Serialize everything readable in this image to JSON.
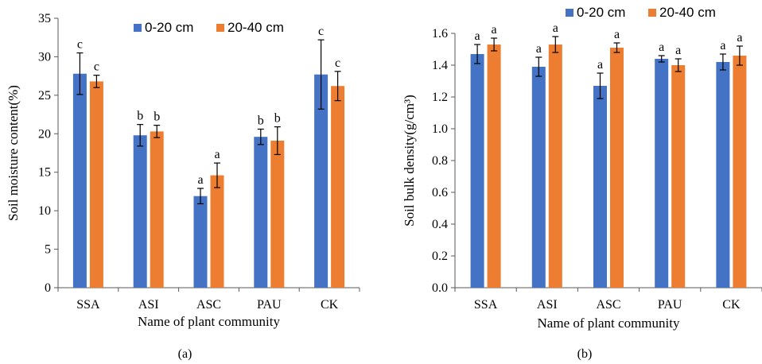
{
  "chart_data": [
    {
      "type": "bar",
      "panel_label": "(a)",
      "xlabel": "Name of plant community",
      "ylabel": "Soil moisture content(%)",
      "ylim": [
        0,
        35
      ],
      "yticks": [
        "0",
        "5",
        "10",
        "15",
        "20",
        "25",
        "30",
        "35"
      ],
      "categories": [
        "SSA",
        "ASI",
        "ASC",
        "PAU",
        "CK"
      ],
      "legend_position": "top-center",
      "series": [
        {
          "name": "0-20 cm",
          "color": "#4472C4",
          "values": [
            27.8,
            19.8,
            11.9,
            19.6,
            27.7
          ],
          "errors": [
            2.7,
            1.4,
            1.0,
            1.0,
            4.5
          ],
          "labels": [
            "c",
            "b",
            "a",
            "b",
            "c"
          ]
        },
        {
          "name": "20-40 cm",
          "color": "#ED7D31",
          "values": [
            26.8,
            20.3,
            14.6,
            19.1,
            26.2
          ],
          "errors": [
            0.8,
            0.8,
            1.6,
            1.8,
            1.9
          ],
          "labels": [
            "c",
            "b",
            "a",
            "b",
            "c"
          ]
        }
      ]
    },
    {
      "type": "bar",
      "panel_label": "(b)",
      "xlabel": "Name of plant community",
      "ylabel": "Soil bulk density(g/cm³)",
      "ylim": [
        0,
        1.6
      ],
      "yticks": [
        "0.0",
        "0.2",
        "0.4",
        "0.6",
        "0.8",
        "1.0",
        "1.2",
        "1.4",
        "1.6"
      ],
      "categories": [
        "SSA",
        "ASI",
        "ASC",
        "PAU",
        "CK"
      ],
      "legend_position": "top-center",
      "series": [
        {
          "name": "0-20 cm",
          "color": "#4472C4",
          "values": [
            1.47,
            1.39,
            1.27,
            1.44,
            1.42
          ],
          "errors": [
            0.06,
            0.06,
            0.08,
            0.02,
            0.05
          ],
          "labels": [
            "a",
            "a",
            "a",
            "a",
            "a"
          ]
        },
        {
          "name": "20-40 cm",
          "color": "#ED7D31",
          "values": [
            1.53,
            1.53,
            1.51,
            1.4,
            1.46
          ],
          "errors": [
            0.04,
            0.05,
            0.03,
            0.04,
            0.06
          ],
          "labels": [
            "a",
            "a",
            "a",
            "a",
            "a"
          ]
        }
      ]
    }
  ]
}
